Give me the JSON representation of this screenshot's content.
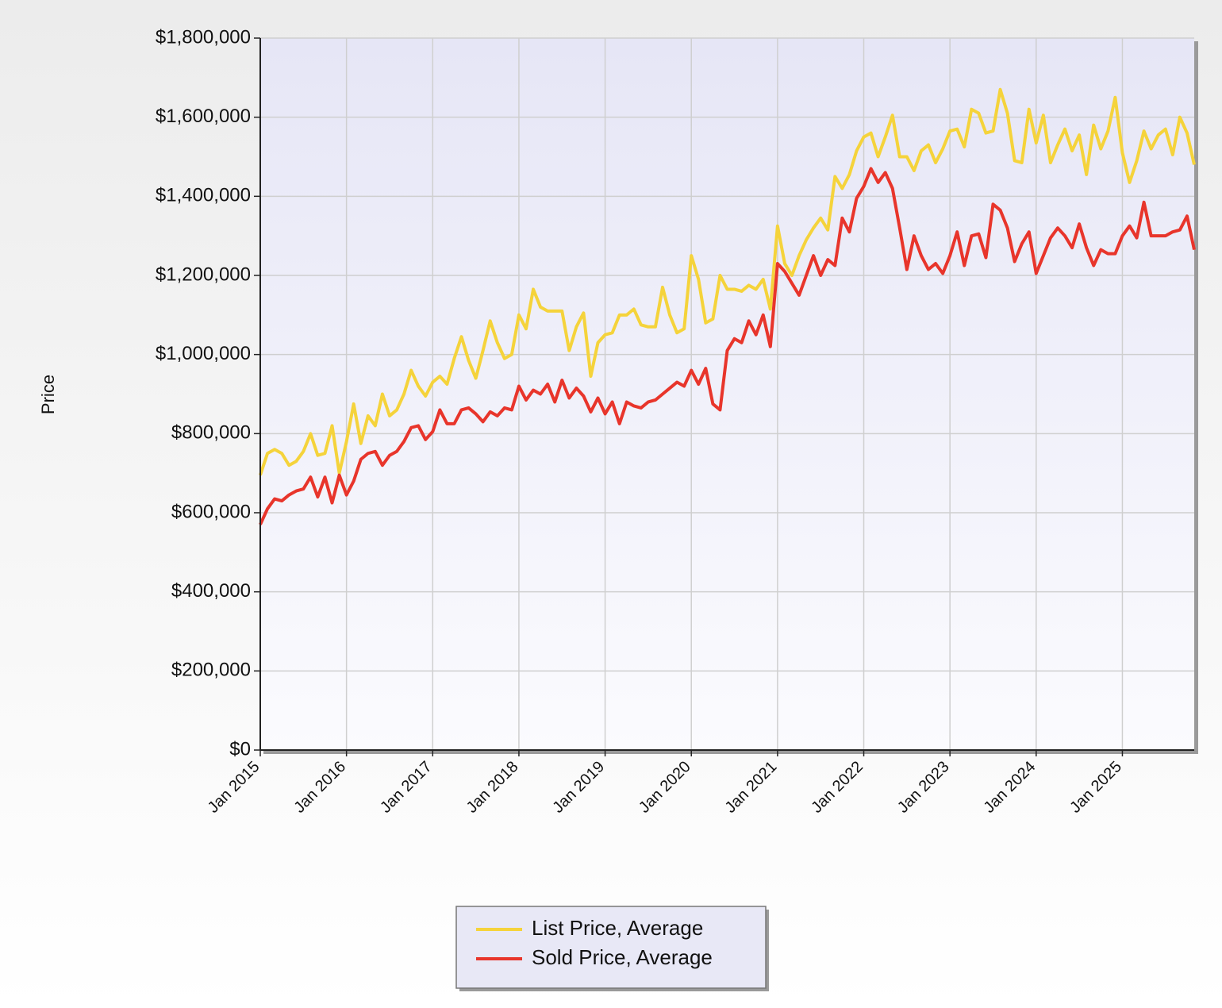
{
  "chart_data": {
    "type": "line",
    "y_label": "Price",
    "categories": [
      "Jan 2015",
      null,
      null,
      null,
      null,
      null,
      null,
      null,
      null,
      null,
      null,
      null,
      "Jan 2016",
      null,
      null,
      null,
      null,
      null,
      null,
      null,
      null,
      null,
      null,
      null,
      "Jan 2017",
      null,
      null,
      null,
      null,
      null,
      null,
      null,
      null,
      null,
      null,
      null,
      "Jan 2018",
      null,
      null,
      null,
      null,
      null,
      null,
      null,
      null,
      null,
      null,
      null,
      "Jan 2019",
      null,
      null,
      null,
      null,
      null,
      null,
      null,
      null,
      null,
      null,
      null,
      "Jan 2020",
      null,
      null,
      null,
      null,
      null,
      null,
      null,
      null,
      null,
      null,
      null,
      "Jan 2021",
      null,
      null,
      null,
      null,
      null,
      null,
      null,
      null,
      null,
      null,
      null,
      "Jan 2022",
      null,
      null,
      null,
      null,
      null,
      null,
      null,
      null,
      null,
      null,
      null,
      "Jan 2023",
      null,
      null,
      null,
      null,
      null,
      null,
      null,
      null,
      null,
      null,
      null,
      "Jan 2024",
      null,
      null,
      null,
      null,
      null,
      null,
      null,
      null,
      null,
      null,
      null,
      "Jan 2025",
      null,
      null,
      null,
      null,
      null,
      null,
      null,
      null,
      null,
      null
    ],
    "series": [
      {
        "name": "List Price, Average",
        "color": "#f5d33b",
        "values": [
          695000,
          750000,
          760000,
          750000,
          720000,
          730000,
          755000,
          800000,
          745000,
          750000,
          820000,
          700000,
          780000,
          875000,
          775000,
          845000,
          820000,
          900000,
          845000,
          860000,
          900000,
          960000,
          920000,
          895000,
          930000,
          945000,
          925000,
          990000,
          1045000,
          985000,
          940000,
          1010000,
          1085000,
          1030000,
          990000,
          1000000,
          1100000,
          1065000,
          1165000,
          1120000,
          1110000,
          1110000,
          1110000,
          1010000,
          1070000,
          1105000,
          945000,
          1030000,
          1050000,
          1055000,
          1100000,
          1100000,
          1115000,
          1075000,
          1070000,
          1070000,
          1170000,
          1100000,
          1055000,
          1065000,
          1250000,
          1190000,
          1080000,
          1090000,
          1200000,
          1165000,
          1165000,
          1160000,
          1175000,
          1165000,
          1190000,
          1115000,
          1325000,
          1230000,
          1200000,
          1250000,
          1290000,
          1320000,
          1345000,
          1315000,
          1450000,
          1420000,
          1455000,
          1515000,
          1550000,
          1560000,
          1500000,
          1550000,
          1605000,
          1500000,
          1500000,
          1465000,
          1515000,
          1530000,
          1485000,
          1520000,
          1565000,
          1570000,
          1525000,
          1620000,
          1610000,
          1560000,
          1565000,
          1670000,
          1610000,
          1490000,
          1485000,
          1620000,
          1535000,
          1605000,
          1485000,
          1530000,
          1570000,
          1515000,
          1555000,
          1455000,
          1580000,
          1520000,
          1565000,
          1650000,
          1510000,
          1435000,
          1490000,
          1565000,
          1520000,
          1555000,
          1570000,
          1505000,
          1600000,
          1560000,
          1480000
        ]
      },
      {
        "name": "Sold Price, Average",
        "color": "#e8352b",
        "values": [
          570000,
          610000,
          635000,
          630000,
          645000,
          655000,
          660000,
          690000,
          640000,
          690000,
          625000,
          695000,
          645000,
          680000,
          735000,
          750000,
          755000,
          720000,
          745000,
          755000,
          780000,
          815000,
          820000,
          785000,
          805000,
          860000,
          825000,
          825000,
          860000,
          865000,
          850000,
          830000,
          855000,
          845000,
          865000,
          860000,
          920000,
          885000,
          910000,
          900000,
          925000,
          880000,
          935000,
          890000,
          915000,
          895000,
          855000,
          890000,
          850000,
          880000,
          825000,
          880000,
          870000,
          865000,
          880000,
          885000,
          900000,
          915000,
          930000,
          920000,
          960000,
          925000,
          965000,
          875000,
          860000,
          1010000,
          1040000,
          1030000,
          1085000,
          1050000,
          1100000,
          1020000,
          1230000,
          1210000,
          1180000,
          1150000,
          1200000,
          1250000,
          1200000,
          1240000,
          1225000,
          1345000,
          1310000,
          1395000,
          1425000,
          1470000,
          1435000,
          1460000,
          1420000,
          1320000,
          1215000,
          1300000,
          1250000,
          1215000,
          1230000,
          1205000,
          1250000,
          1310000,
          1225000,
          1300000,
          1305000,
          1245000,
          1380000,
          1365000,
          1320000,
          1235000,
          1280000,
          1310000,
          1205000,
          1250000,
          1295000,
          1320000,
          1300000,
          1270000,
          1330000,
          1270000,
          1225000,
          1265000,
          1255000,
          1255000,
          1300000,
          1325000,
          1295000,
          1385000,
          1300000,
          1300000,
          1300000,
          1310000,
          1315000,
          1350000,
          1265000
        ]
      }
    ],
    "ylim": [
      0,
      1800000
    ],
    "yticks": [
      {
        "value": 0,
        "label": "$0"
      },
      {
        "value": 200000,
        "label": "$200,000"
      },
      {
        "value": 400000,
        "label": "$400,000"
      },
      {
        "value": 600000,
        "label": "$600,000"
      },
      {
        "value": 800000,
        "label": "$800,000"
      },
      {
        "value": 1000000,
        "label": "$1,000,000"
      },
      {
        "value": 1200000,
        "label": "$1,200,000"
      },
      {
        "value": 1400000,
        "label": "$1,400,000"
      },
      {
        "value": 1600000,
        "label": "$1,600,000"
      },
      {
        "value": 1800000,
        "label": "$1,800,000"
      }
    ],
    "grid": true,
    "legend": "bottom"
  }
}
